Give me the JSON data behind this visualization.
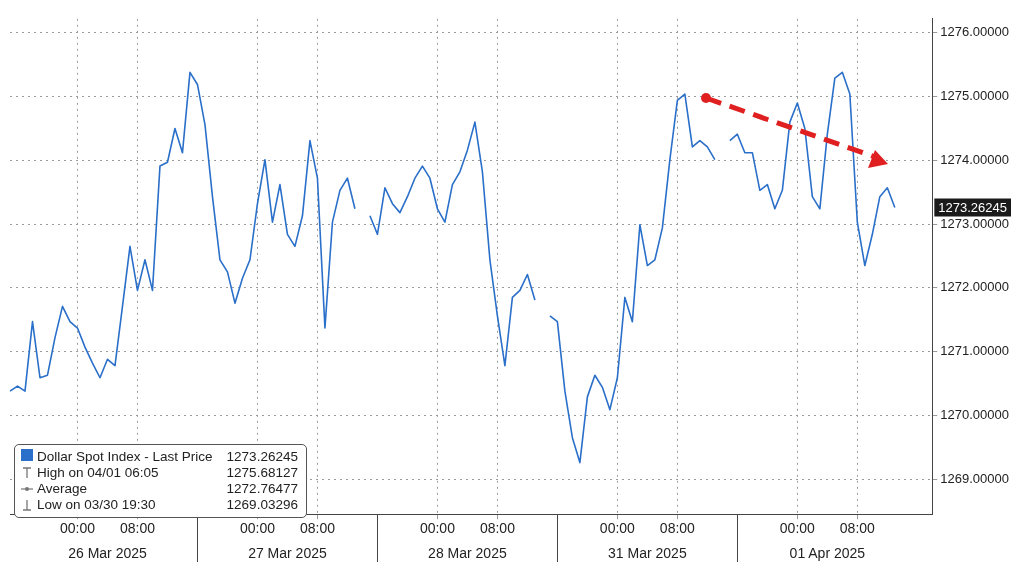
{
  "chart_data": {
    "type": "line",
    "categories": [
      null,
      null,
      null,
      null,
      null,
      null,
      null,
      null,
      null,
      "00:00",
      null,
      null,
      null,
      null,
      null,
      null,
      null,
      "08:00",
      null,
      null,
      null,
      null,
      null,
      null,
      null,
      null,
      null,
      null,
      null,
      null,
      null,
      null,
      null,
      "00:00",
      null,
      null,
      null,
      null,
      null,
      null,
      null,
      "08:00",
      null,
      null,
      null,
      null,
      null,
      null,
      null,
      null,
      null,
      null,
      null,
      null,
      null,
      null,
      null,
      "00:00",
      null,
      null,
      null,
      null,
      null,
      null,
      null,
      "08:00",
      null,
      null,
      null,
      null,
      null,
      null,
      null,
      null,
      null,
      null,
      null,
      null,
      null,
      null,
      null,
      "00:00",
      null,
      null,
      null,
      null,
      null,
      null,
      null,
      "08:00",
      null,
      null,
      null,
      null,
      null,
      null,
      null,
      null,
      null,
      null,
      null,
      null,
      null,
      null,
      null,
      "00:00",
      null,
      null,
      null,
      null,
      null,
      null,
      null,
      "08:00",
      null,
      null,
      null,
      null,
      null,
      null,
      null,
      null,
      null,
      null
    ],
    "series": [
      {
        "name": "Dollar Spot Index - Last Price",
        "color": "#2a6fc9",
        "values": [
          1270.38,
          1270.46,
          1270.38,
          1271.47,
          1270.59,
          1270.63,
          1271.22,
          1271.71,
          1271.47,
          1271.37,
          1271.07,
          1270.82,
          1270.59,
          1270.88,
          1270.78,
          1271.71,
          1272.65,
          1271.96,
          1272.44,
          1271.96,
          1273.91,
          1273.97,
          1274.5,
          1274.12,
          1275.38,
          1275.19,
          1274.56,
          1273.43,
          1272.44,
          1272.25,
          1271.76,
          1272.15,
          1272.44,
          1273.32,
          1274.01,
          1273.03,
          1273.62,
          1272.84,
          1272.65,
          1273.13,
          1274.31,
          1273.72,
          1271.37,
          1273.03,
          1273.53,
          1273.72,
          1273.24,
          null,
          1273.13,
          1272.84,
          1273.57,
          1273.32,
          1273.18,
          1273.43,
          1273.72,
          1273.91,
          1273.72,
          1273.24,
          1273.03,
          1273.62,
          1273.82,
          1274.16,
          1274.6,
          1273.82,
          1272.44,
          1271.56,
          1270.78,
          1271.85,
          1271.96,
          1272.21,
          1271.81,
          null,
          1271.56,
          1271.47,
          1270.38,
          1269.65,
          1269.26,
          1270.29,
          1270.63,
          1270.44,
          1270.09,
          1270.59,
          1271.85,
          1271.47,
          1272.99,
          1272.35,
          1272.44,
          1272.94,
          1274.01,
          1274.94,
          1275.04,
          1274.21,
          1274.31,
          1274.21,
          1274.01,
          null,
          1274.31,
          1274.41,
          1274.12,
          1274.12,
          1273.53,
          1273.62,
          1273.24,
          1273.53,
          1274.6,
          1274.9,
          1274.5,
          1273.43,
          1273.24,
          1274.41,
          1275.29,
          1275.38,
          1275.04,
          1273.03,
          1272.35,
          1272.84,
          1273.43,
          1273.57,
          1273.26,
          null,
          null,
          null,
          null,
          null
        ]
      }
    ],
    "ylim": [
      1268.45,
      1276.22
    ],
    "yticks": [
      {
        "value": 1269,
        "label": "1269.00000"
      },
      {
        "value": 1270,
        "label": "1270.00000"
      },
      {
        "value": 1271,
        "label": "1271.00000"
      },
      {
        "value": 1272,
        "label": "1272.00000"
      },
      {
        "value": 1273,
        "label": "1273.00000"
      },
      {
        "value": 1274,
        "label": "1274.00000"
      },
      {
        "value": 1275,
        "label": "1275.00000"
      },
      {
        "value": 1276,
        "label": "1276.00000"
      }
    ],
    "grid": true,
    "legend": "bottom left",
    "marker": "none",
    "annotations": [
      "1273.26245",
      "26 Mar 2025",
      "27 Mar 2025",
      "28 Mar 2025",
      "31 Mar 2025",
      "01 Apr 2025",
      "1273.26245",
      "High on 04/01 06:05",
      "1275.68127",
      "Average",
      "1272.76477",
      "Low on 03/30 19:30",
      "1269.03296"
    ]
  }
}
